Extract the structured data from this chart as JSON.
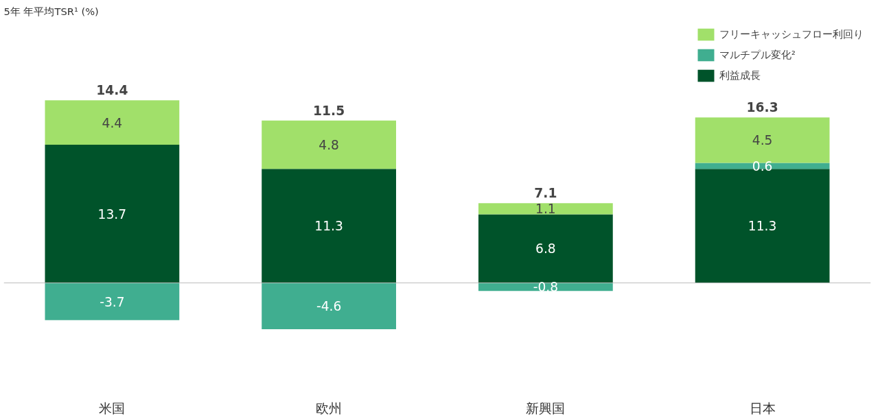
{
  "chart_data": {
    "type": "bar",
    "stacked": true,
    "title": "5年 年平均TSR¹ (%)",
    "categories": [
      "米国",
      "欧州",
      "新興国",
      "日本"
    ],
    "series": [
      {
        "name": "利益成長",
        "color": "#00532a",
        "values": [
          13.7,
          11.3,
          6.8,
          11.3
        ]
      },
      {
        "name": "マルチプル変化²",
        "color": "#40ae90",
        "values": [
          -3.7,
          -4.6,
          -0.8,
          0.6
        ]
      },
      {
        "name": "フリーキャッシュフロー利回り",
        "color": "#a1e06a",
        "values": [
          4.4,
          4.8,
          1.1,
          4.5
        ]
      }
    ],
    "totals": [
      "14.4",
      "11.5",
      "7.1",
      "16.3"
    ],
    "data_labels": true,
    "legend": "top right",
    "grid": false
  }
}
